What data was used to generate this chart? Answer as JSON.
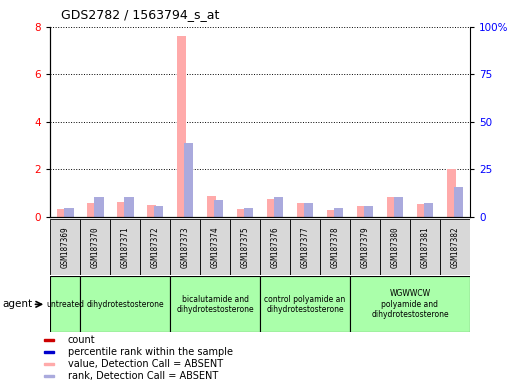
{
  "title": "GDS2782 / 1563794_s_at",
  "samples": [
    "GSM187369",
    "GSM187370",
    "GSM187371",
    "GSM187372",
    "GSM187373",
    "GSM187374",
    "GSM187375",
    "GSM187376",
    "GSM187377",
    "GSM187378",
    "GSM187379",
    "GSM187380",
    "GSM187381",
    "GSM187382"
  ],
  "value_absent": [
    0.35,
    0.6,
    0.65,
    0.5,
    7.6,
    0.9,
    0.35,
    0.75,
    0.6,
    0.3,
    0.45,
    0.85,
    0.55,
    2.0
  ],
  "rank_absent": [
    4.5,
    10.5,
    10.5,
    6.0,
    39.0,
    9.0,
    4.5,
    10.5,
    7.5,
    4.5,
    6.0,
    10.5,
    7.5,
    16.0
  ],
  "ylim_left": [
    0,
    8
  ],
  "ylim_right": [
    0,
    100
  ],
  "yticks_left": [
    0,
    2,
    4,
    6,
    8
  ],
  "yticks_right": [
    0,
    25,
    50,
    75,
    100
  ],
  "ytick_labels_right": [
    "0",
    "25",
    "50",
    "75",
    "100%"
  ],
  "agent_groups": [
    {
      "label": "untreated",
      "start": 0,
      "end": 1,
      "color": "#aaffaa"
    },
    {
      "label": "dihydrotestosterone",
      "start": 1,
      "end": 4,
      "color": "#aaffaa"
    },
    {
      "label": "bicalutamide and\ndihydrotestosterone",
      "start": 4,
      "end": 7,
      "color": "#aaffaa"
    },
    {
      "label": "control polyamide an\ndihydrotestosterone",
      "start": 7,
      "end": 10,
      "color": "#aaffaa"
    },
    {
      "label": "WGWWCW\npolyamide and\ndihydrotestosterone",
      "start": 10,
      "end": 14,
      "color": "#aaffaa"
    }
  ],
  "color_value_absent": "#ffaaaa",
  "color_rank_absent": "#aaaadd",
  "color_count": "#cc0000",
  "color_rank": "#0000cc",
  "bg_color": "#d8d8d8",
  "agent_label": "agent"
}
